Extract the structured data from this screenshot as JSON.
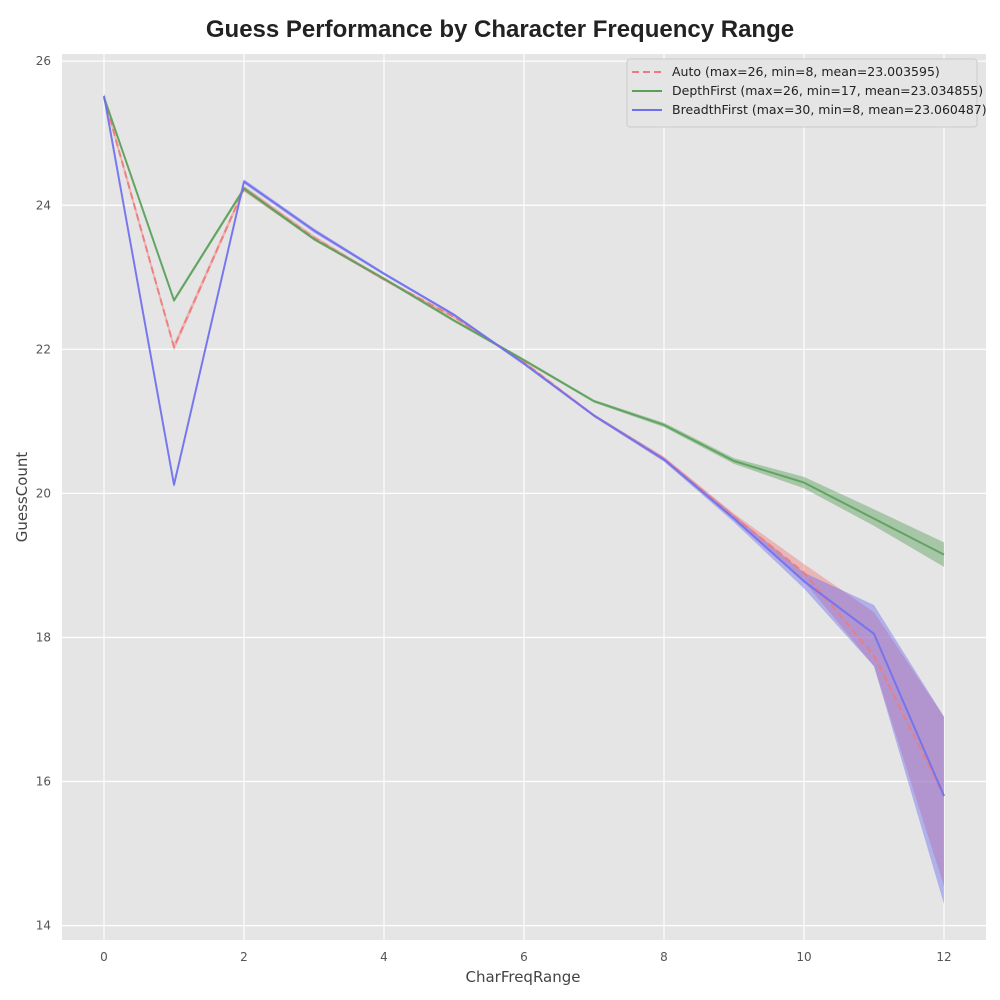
{
  "chart_data": {
    "type": "line",
    "title": "Guess Performance by Character Frequency Range",
    "xlabel": "CharFreqRange",
    "ylabel": "GuessCount",
    "xlim": [
      -0.6,
      12.6
    ],
    "ylim": [
      13.8,
      26.1
    ],
    "xticks": [
      0,
      2,
      4,
      6,
      8,
      10,
      12
    ],
    "yticks": [
      14,
      16,
      18,
      20,
      22,
      24,
      26
    ],
    "grid": true,
    "legend_position": "top-right",
    "x": [
      0,
      1,
      2,
      3,
      4,
      5,
      6,
      7,
      8,
      9,
      10,
      11,
      12
    ],
    "series": [
      {
        "name": "Auto (max=26, min=8, mean=23.003595)",
        "color": "#f07a7a",
        "line_style": "dashed",
        "values": [
          25.5,
          22.03,
          24.23,
          23.55,
          22.97,
          22.45,
          21.82,
          21.08,
          20.48,
          19.68,
          18.9,
          17.75,
          15.8
        ],
        "ci_low": [
          25.45,
          21.98,
          24.19,
          23.52,
          22.95,
          22.43,
          21.8,
          21.06,
          20.45,
          19.64,
          18.78,
          17.6,
          14.55
        ],
        "ci_high": [
          25.55,
          22.08,
          24.27,
          23.58,
          22.99,
          22.47,
          21.84,
          21.1,
          20.51,
          19.72,
          19.02,
          18.35,
          16.9
        ]
      },
      {
        "name": "DepthFirst (max=26, min=17, mean=23.034855)",
        "color": "#5aa05a",
        "line_style": "solid",
        "values": [
          25.5,
          22.68,
          24.23,
          23.53,
          22.98,
          22.4,
          21.85,
          21.28,
          20.95,
          20.45,
          20.15,
          19.65,
          19.15
        ],
        "ci_low": [
          25.47,
          22.65,
          24.2,
          23.51,
          22.96,
          22.38,
          21.83,
          21.26,
          20.92,
          20.41,
          20.07,
          19.55,
          18.98
        ],
        "ci_high": [
          25.53,
          22.71,
          24.26,
          23.55,
          23.0,
          22.42,
          21.87,
          21.3,
          20.98,
          20.49,
          20.23,
          19.78,
          19.32
        ]
      },
      {
        "name": "BreadthFirst (max=30, min=8, mean=23.060487)",
        "color": "#6f6ff0",
        "line_style": "solid",
        "values": [
          25.52,
          20.12,
          24.33,
          23.65,
          23.05,
          22.48,
          21.8,
          21.08,
          20.47,
          19.65,
          18.78,
          18.05,
          15.8
        ],
        "ci_low": [
          25.49,
          20.08,
          24.3,
          23.62,
          23.03,
          22.46,
          21.78,
          21.06,
          20.44,
          19.6,
          18.68,
          17.6,
          14.3
        ],
        "ci_high": [
          25.55,
          20.16,
          24.36,
          23.68,
          23.07,
          22.5,
          21.82,
          21.1,
          20.5,
          19.7,
          18.9,
          18.45,
          16.9
        ]
      }
    ]
  }
}
